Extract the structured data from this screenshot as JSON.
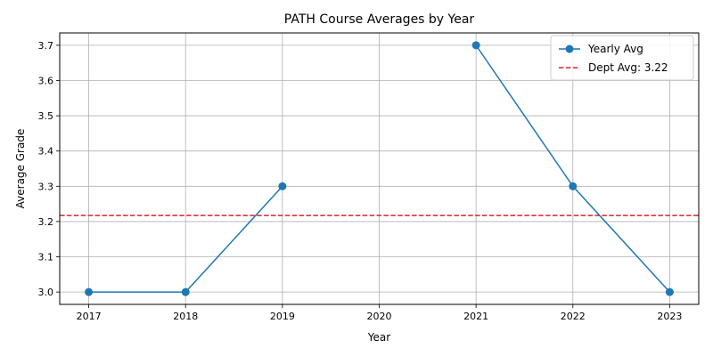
{
  "chart_data": {
    "type": "line",
    "title": "PATH Course Averages by Year",
    "xlabel": "Year",
    "ylabel": "Average Grade",
    "x_ticks": [
      "2017",
      "2018",
      "2019",
      "2020",
      "2021",
      "2022",
      "2023"
    ],
    "y_ticks": [
      "3.0",
      "3.1",
      "3.2",
      "3.3",
      "3.4",
      "3.5",
      "3.6",
      "3.7"
    ],
    "xlim": [
      2016.7,
      2023.3
    ],
    "ylim": [
      2.965,
      3.735
    ],
    "grid": true,
    "legend_position": "top-right",
    "series": [
      {
        "name": "Yearly Avg",
        "color": "#1f77b4",
        "style": "solid-line-circle-markers",
        "points": [
          {
            "x": 2017,
            "y": 3.0
          },
          {
            "x": 2018,
            "y": 3.0
          },
          {
            "x": 2019,
            "y": 3.3
          },
          {
            "x": 2020,
            "y": null
          },
          {
            "x": 2021,
            "y": 3.7
          },
          {
            "x": 2022,
            "y": 3.3
          },
          {
            "x": 2023,
            "y": 3.0
          }
        ]
      }
    ],
    "reference_line": {
      "name": "Dept Avg: 3.22",
      "value": 3.217,
      "color": "#d62728",
      "style": "dashed"
    }
  }
}
